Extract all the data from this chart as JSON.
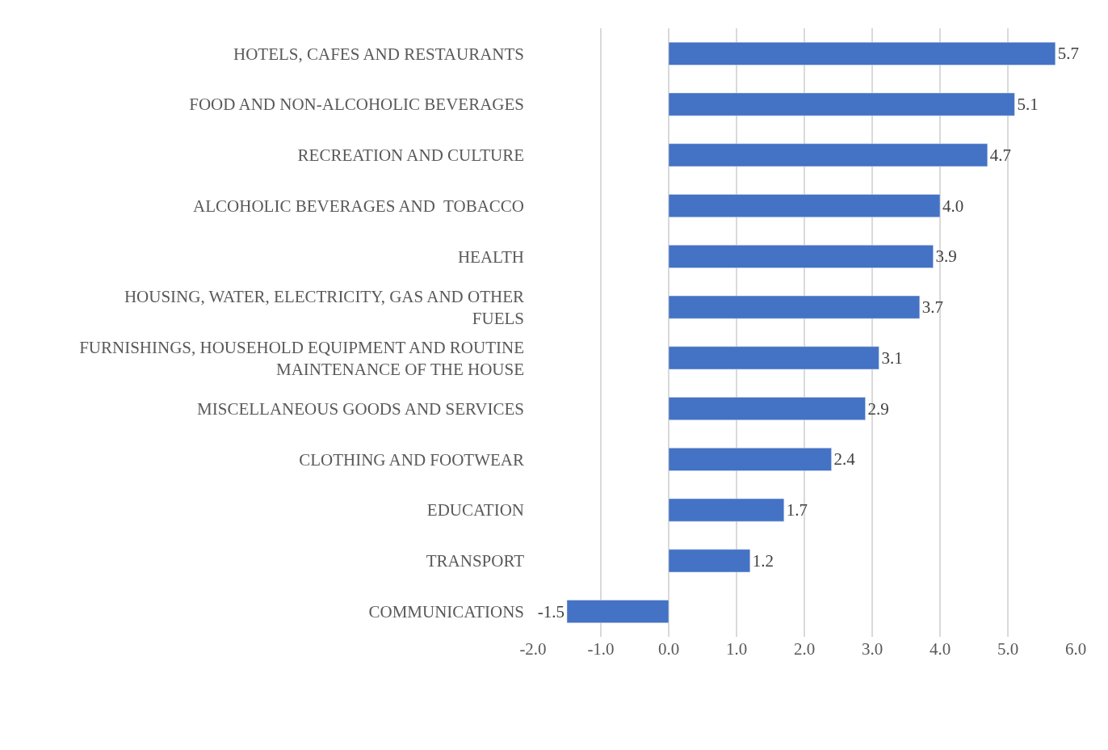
{
  "chart_data": {
    "type": "bar",
    "orientation": "horizontal",
    "categories": [
      "HOTELS, CAFES AND RESTAURANTS",
      "FOOD AND NON-ALCOHOLIC BEVERAGES",
      "RECREATION AND CULTURE",
      "ALCOHOLIC BEVERAGES AND  TOBACCO",
      "HEALTH",
      "HOUSING, WATER, ELECTRICITY, GAS AND OTHER FUELS",
      "FURNISHINGS, HOUSEHOLD EQUIPMENT AND ROUTINE MAINTENANCE OF THE HOUSE",
      "MISCELLANEOUS GOODS AND SERVICES",
      "CLOTHING AND FOOTWEAR",
      "EDUCATION",
      "TRANSPORT",
      "COMMUNICATIONS"
    ],
    "values": [
      5.7,
      5.1,
      4.7,
      4.0,
      3.9,
      3.7,
      3.1,
      2.9,
      2.4,
      1.7,
      1.2,
      -1.5
    ],
    "value_labels": [
      "5.7",
      "5.1",
      "4.7",
      "4.0",
      "3.9",
      "3.7",
      "3.1",
      "2.9",
      "2.4",
      "1.7",
      "1.2",
      "-1.5"
    ],
    "color": "#4472c4",
    "xlim": [
      -2,
      6
    ],
    "xticks": [
      {
        "value": -2,
        "label": "-2.0"
      },
      {
        "value": -1,
        "label": "-1.0"
      },
      {
        "value": 0,
        "label": "0.0"
      },
      {
        "value": 1,
        "label": "1.0"
      },
      {
        "value": 2,
        "label": "2.0"
      },
      {
        "value": 3,
        "label": "3.0"
      },
      {
        "value": 4,
        "label": "4.0"
      },
      {
        "value": 5,
        "label": "5.0"
      },
      {
        "value": 6,
        "label": "6.0"
      }
    ],
    "grid": "x",
    "legend": false
  }
}
